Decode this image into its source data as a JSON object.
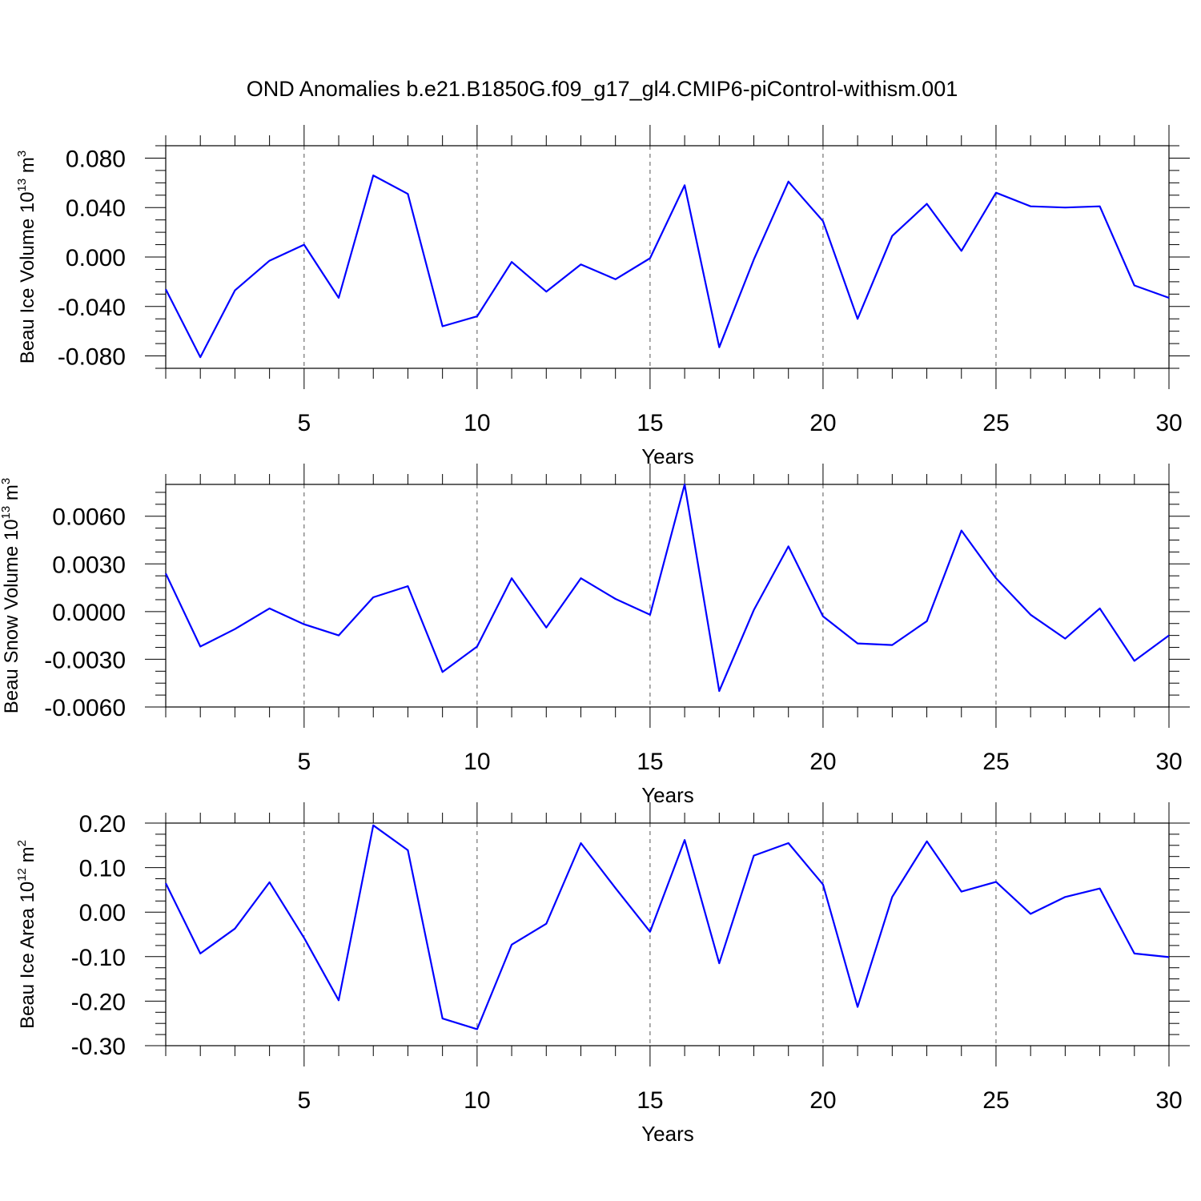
{
  "title": "OND Anomalies b.e21.B1850G.f09_g17_gl4.CMIP6-piControl-withism.001",
  "colors": {
    "line": "#0000ff",
    "axis": "#000000",
    "grid": "#555555"
  },
  "chart_data": [
    {
      "type": "line",
      "title": "OND Anomalies b.e21.B1850G.f09_g17_gl4.CMIP6-piControl-withism.001",
      "xlabel": "Years",
      "ylabel_main": "Beau Ice Volume 10",
      "ylabel_sup": "13",
      "ylabel_unit": " m",
      "ylabel_unit_sup": "3",
      "xlim": [
        1,
        30
      ],
      "ylim": [
        -0.09,
        0.09
      ],
      "x_ticks": [
        5,
        10,
        15,
        20,
        25,
        30
      ],
      "x_tick_labels": [
        "5",
        "10",
        "15",
        "20",
        "25",
        "30"
      ],
      "y_ticks": [
        0.08,
        0.04,
        0.0,
        -0.04,
        -0.08
      ],
      "y_tick_labels": [
        "0.080",
        "0.040",
        "0.000",
        "-0.040",
        "-0.080"
      ],
      "grid": "vertical dashed at major x ticks",
      "series": [
        {
          "name": "Beau Ice Volume",
          "x": [
            1,
            2,
            3,
            4,
            5,
            6,
            7,
            8,
            9,
            10,
            11,
            12,
            13,
            14,
            15,
            16,
            17,
            18,
            19,
            20,
            21,
            22,
            23,
            24,
            25,
            26,
            27,
            28,
            29,
            30
          ],
          "values": [
            -0.026,
            -0.081,
            -0.027,
            -0.003,
            0.01,
            -0.033,
            0.066,
            0.051,
            -0.056,
            -0.048,
            -0.004,
            -0.028,
            -0.006,
            -0.018,
            -0.001,
            0.058,
            -0.073,
            -0.002,
            0.061,
            0.029,
            -0.05,
            0.017,
            0.043,
            0.005,
            0.052,
            0.041,
            0.04,
            0.041,
            -0.023,
            -0.033
          ]
        }
      ]
    },
    {
      "type": "line",
      "xlabel": "Years",
      "ylabel_main": "Beau Snow Volume 10",
      "ylabel_sup": "13",
      "ylabel_unit": " m",
      "ylabel_unit_sup": "3",
      "xlim": [
        1,
        30
      ],
      "ylim": [
        -0.006,
        0.008
      ],
      "x_ticks": [
        5,
        10,
        15,
        20,
        25,
        30
      ],
      "x_tick_labels": [
        "5",
        "10",
        "15",
        "20",
        "25",
        "30"
      ],
      "y_ticks": [
        0.006,
        0.003,
        0.0,
        -0.003,
        -0.006
      ],
      "y_tick_labels": [
        "0.0060",
        "0.0030",
        "0.0000",
        "-0.0030",
        "-0.0060"
      ],
      "grid": "vertical dashed at major x ticks",
      "series": [
        {
          "name": "Beau Snow Volume",
          "x": [
            1,
            2,
            3,
            4,
            5,
            6,
            7,
            8,
            9,
            10,
            11,
            12,
            13,
            14,
            15,
            16,
            17,
            18,
            19,
            20,
            21,
            22,
            23,
            24,
            25,
            26,
            27,
            28,
            29,
            30
          ],
          "values": [
            0.0024,
            -0.0022,
            -0.0011,
            0.0002,
            -0.0008,
            -0.0015,
            0.0009,
            0.0016,
            -0.0038,
            -0.0022,
            0.0021,
            -0.001,
            0.0021,
            0.0008,
            -0.0002,
            0.008,
            -0.005,
            0.0001,
            0.0041,
            -0.0003,
            -0.002,
            -0.0021,
            -0.0006,
            0.0051,
            0.0021,
            -0.0002,
            -0.0017,
            0.0002,
            -0.0031,
            -0.0015
          ]
        }
      ]
    },
    {
      "type": "line",
      "xlabel": "Years",
      "ylabel_main": "Beau Ice Area 10",
      "ylabel_sup": "12",
      "ylabel_unit": " m",
      "ylabel_unit_sup": "2",
      "xlim": [
        1,
        30
      ],
      "ylim": [
        -0.3,
        0.2
      ],
      "x_ticks": [
        5,
        10,
        15,
        20,
        25,
        30
      ],
      "x_tick_labels": [
        "5",
        "10",
        "15",
        "20",
        "25",
        "30"
      ],
      "y_ticks": [
        0.2,
        0.1,
        0.0,
        -0.1,
        -0.2,
        -0.3
      ],
      "y_tick_labels": [
        "0.20",
        "0.10",
        "0.00",
        "-0.10",
        "-0.20",
        "-0.30"
      ],
      "grid": "vertical dashed at major x ticks",
      "series": [
        {
          "name": "Beau Ice Area",
          "x": [
            1,
            2,
            3,
            4,
            5,
            6,
            7,
            8,
            9,
            10,
            11,
            12,
            13,
            14,
            15,
            16,
            17,
            18,
            19,
            20,
            21,
            22,
            23,
            24,
            25,
            26,
            27,
            28,
            29,
            30
          ],
          "values": [
            0.065,
            -0.093,
            -0.037,
            0.067,
            -0.058,
            -0.198,
            0.195,
            0.139,
            -0.239,
            -0.263,
            -0.073,
            -0.026,
            0.155,
            0.054,
            -0.044,
            0.162,
            -0.115,
            0.127,
            0.155,
            0.062,
            -0.213,
            0.034,
            0.159,
            0.046,
            0.068,
            -0.004,
            0.034,
            0.053,
            -0.093,
            -0.101
          ]
        }
      ]
    }
  ]
}
